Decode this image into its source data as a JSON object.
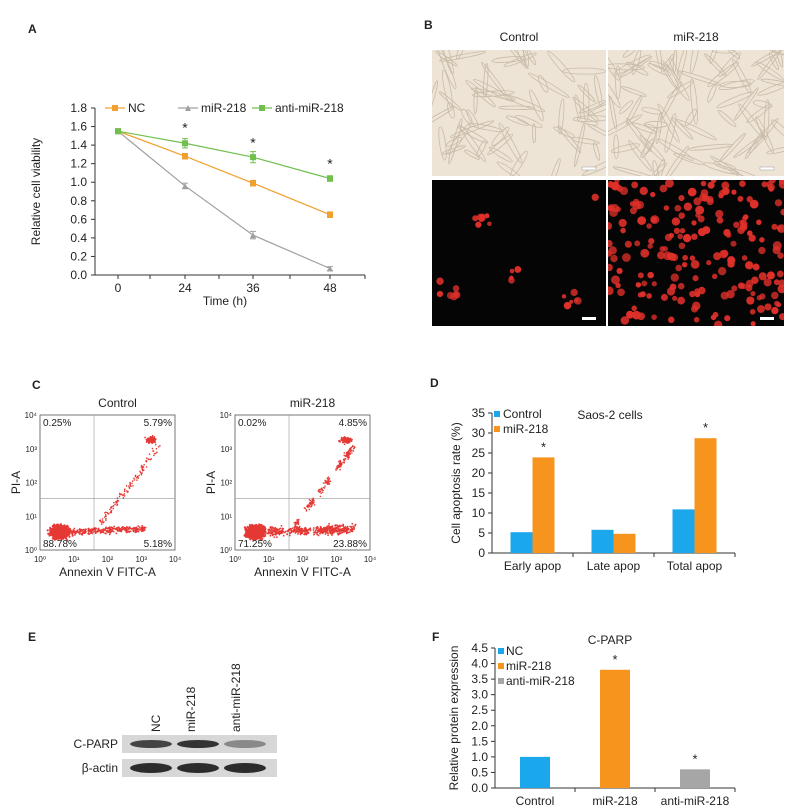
{
  "panels": {
    "A": "A",
    "B": "B",
    "C": "C",
    "D": "D",
    "E": "E",
    "F": "F"
  },
  "chart_data": [
    {
      "id": "A",
      "type": "line",
      "title": "",
      "xlabel": "Time (h)",
      "ylabel": "Relative cell viability",
      "x": [
        0,
        24,
        36,
        48
      ],
      "xlim": [
        0,
        48
      ],
      "ylim": [
        0,
        1.8
      ],
      "yticks": [
        0.0,
        0.2,
        0.4,
        0.6,
        0.8,
        1.0,
        1.2,
        1.4,
        1.6,
        1.8
      ],
      "ytick_labels": [
        "0.0",
        "0.2",
        "0.4",
        "0.6",
        "0.8",
        "1.0",
        "1.2",
        "1.4",
        "1.6",
        "1.8"
      ],
      "xticks": [
        0,
        24,
        36,
        48
      ],
      "xtick_labels": [
        "0",
        "24",
        "36",
        "48"
      ],
      "legend": "top",
      "series": [
        {
          "name": "NC",
          "color": "#F0A030",
          "values": [
            1.55,
            1.28,
            0.99,
            0.65
          ],
          "err": [
            0.01,
            0.03,
            0.03,
            0.03
          ]
        },
        {
          "name": "miR-218",
          "color": "#A0A0A0",
          "values": [
            1.55,
            0.96,
            0.43,
            0.07
          ],
          "err": [
            0.01,
            0.03,
            0.04,
            0.02
          ]
        },
        {
          "name": "anti-miR-218",
          "color": "#70C050",
          "values": [
            1.55,
            1.42,
            1.27,
            1.04
          ],
          "err": [
            0.01,
            0.05,
            0.06,
            0.03
          ]
        }
      ],
      "annotations": [
        {
          "x": 24,
          "y": 1.58,
          "text": "*"
        },
        {
          "x": 36,
          "y": 1.42,
          "text": "*"
        },
        {
          "x": 48,
          "y": 1.19,
          "text": "*"
        }
      ]
    },
    {
      "id": "D",
      "type": "bar",
      "title": "Saos-2 cells",
      "xlabel": "",
      "ylabel": "Cell apoptosis rate (%)",
      "categories": [
        "Early apop",
        "Late apop",
        "Total apop"
      ],
      "ylim": [
        0,
        35
      ],
      "yticks": [
        0,
        5,
        10,
        15,
        20,
        25,
        30,
        35
      ],
      "legend": "top-left",
      "series": [
        {
          "name": "Control",
          "color": "#1AA7EC",
          "values": [
            5.2,
            5.8,
            10.9
          ]
        },
        {
          "name": "miR-218",
          "color": "#F7941D",
          "values": [
            23.9,
            4.8,
            28.7
          ]
        }
      ],
      "annotations": [
        {
          "category": 0,
          "text": "*"
        },
        {
          "category": 2,
          "text": "*"
        }
      ]
    },
    {
      "id": "F",
      "type": "bar",
      "title": "C-PARP",
      "xlabel": "",
      "ylabel": "Relative protein expression",
      "categories": [
        "Control",
        "miR-218",
        "anti-miR-218"
      ],
      "ylim": [
        0,
        4.5
      ],
      "yticks": [
        0,
        0.5,
        1.0,
        1.5,
        2.0,
        2.5,
        3.0,
        3.5,
        4.0,
        4.5
      ],
      "ytick_labels": [
        "0.0",
        "0.5",
        "1.0",
        "1.5",
        "2.0",
        "2.5",
        "3.0",
        "3.5",
        "4.0",
        "4.5"
      ],
      "legend": "top-left",
      "legend_entries": [
        {
          "name": "NC",
          "color": "#1AA7EC"
        },
        {
          "name": "miR-218",
          "color": "#F7941D"
        },
        {
          "name": "anti-miR-218",
          "color": "#A6A6A6"
        }
      ],
      "values": [
        1.0,
        3.8,
        0.6
      ],
      "colors": [
        "#1AA7EC",
        "#F7941D",
        "#A6A6A6"
      ],
      "annotations": [
        {
          "category": 1,
          "text": "*"
        },
        {
          "category": 2,
          "text": "*"
        }
      ]
    },
    {
      "id": "C",
      "type": "scatter",
      "plots": [
        {
          "title": "Control",
          "quadrants": {
            "ul": "0.25%",
            "ur": "5.79%",
            "ll": "88.78%",
            "lr": "5.18%"
          }
        },
        {
          "title": "miR-218",
          "quadrants": {
            "ul": "0.02%",
            "ur": "4.85%",
            "ll": "71.25%",
            "lr": "23.88%"
          }
        }
      ],
      "xlabel": "Annexin V FITC-A",
      "ylabel": "PI-A",
      "xticks": [
        "10⁰",
        "10¹",
        "10²",
        "10³",
        "10⁴"
      ],
      "yticks": [
        "10⁰",
        "10¹",
        "10²",
        "10³",
        "10⁴"
      ],
      "point_color": "#E53935"
    }
  ],
  "panelB": {
    "col_titles": [
      "Control",
      "miR-218"
    ]
  },
  "panelE": {
    "lanes": [
      "NC",
      "miR-218",
      "anti-miR-218"
    ],
    "rows": [
      "C-PARP",
      "β-actin"
    ]
  }
}
